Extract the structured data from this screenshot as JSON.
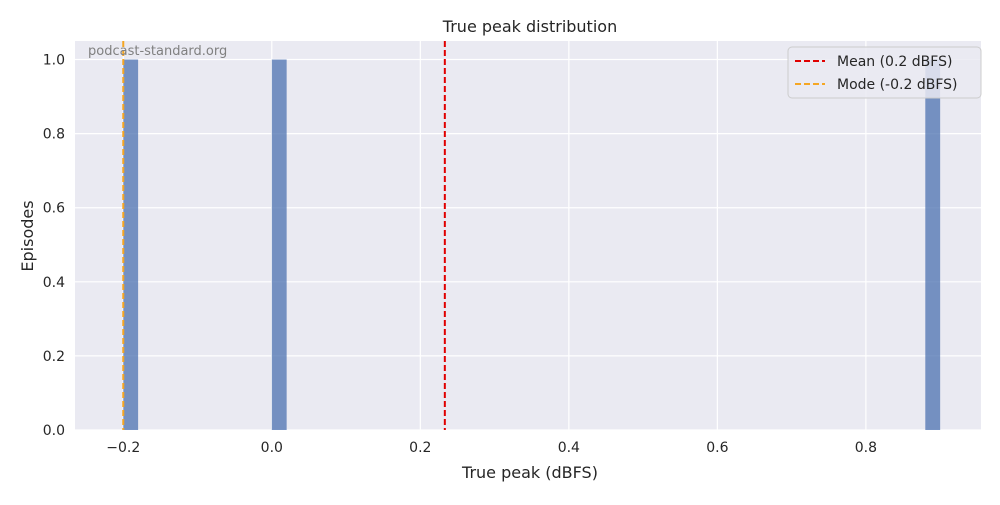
{
  "chart_data": {
    "type": "bar",
    "title": "True peak distribution",
    "xlabel": "True peak (dBFS)",
    "ylabel": "Episodes",
    "xlim": [
      -0.265,
      0.955
    ],
    "ylim": [
      0,
      1.05
    ],
    "xticks": [
      -0.2,
      0.0,
      0.2,
      0.4,
      0.6,
      0.8
    ],
    "xtick_labels": [
      "−0.2",
      "0.0",
      "0.2",
      "0.4",
      "0.6",
      "0.8"
    ],
    "yticks": [
      0.0,
      0.2,
      0.4,
      0.6,
      0.8,
      1.0
    ],
    "ytick_labels": [
      "0.0",
      "0.2",
      "0.4",
      "0.6",
      "0.8",
      "1.0"
    ],
    "bins": [
      {
        "x_start": -0.2,
        "x_end": -0.18,
        "value": 1
      },
      {
        "x_start": 0.0,
        "x_end": 0.02,
        "value": 1
      },
      {
        "x_start": 0.88,
        "x_end": 0.9,
        "value": 1
      }
    ],
    "bar_color": "#4c72b0",
    "reference_lines": [
      {
        "label": "Mean (0.2 dBFS)",
        "x": 0.233,
        "color": "#e00000",
        "style": "dashed"
      },
      {
        "label": "Mode (-0.2 dBFS)",
        "x": -0.2,
        "color": "#f5a623",
        "style": "dashed"
      }
    ],
    "grid": true,
    "background": "#eaeaf2",
    "legend_position": "top-right",
    "watermark": "podcast-standard.org"
  }
}
